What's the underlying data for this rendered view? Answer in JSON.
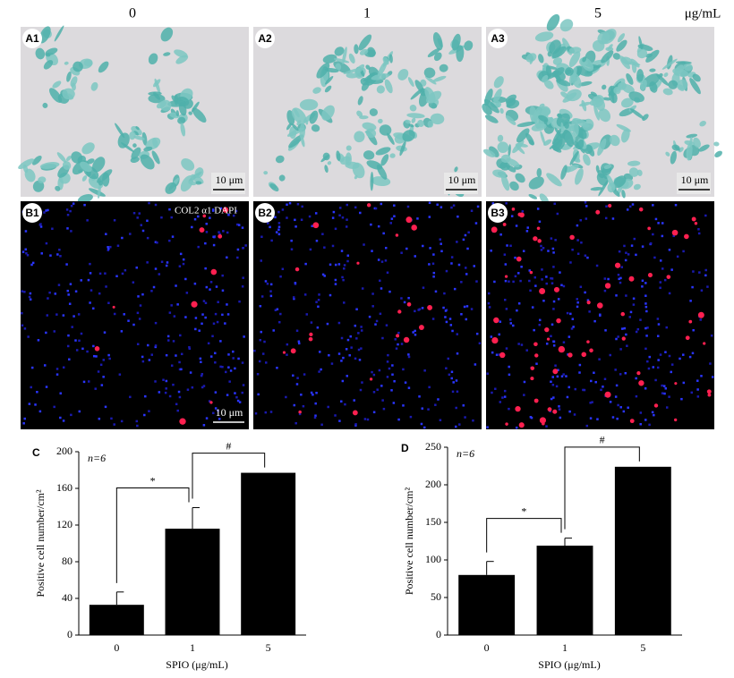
{
  "header": {
    "columns": [
      "0",
      "1",
      "5"
    ],
    "unit": "μg/mL"
  },
  "panels": {
    "row_a": [
      {
        "label": "A1",
        "scale": "10 μm"
      },
      {
        "label": "A2",
        "scale": "10 μm"
      },
      {
        "label": "A3",
        "scale": "10 μm"
      }
    ],
    "row_b": [
      {
        "label": "B1",
        "scale": "10 μm"
      },
      {
        "label": "B2"
      },
      {
        "label": "B3"
      }
    ],
    "stain_label": "COL2 α1 DAPI"
  },
  "chart_data": [
    {
      "type": "bar",
      "panel": "C",
      "annotation": "n=6",
      "categories": [
        "0",
        "1",
        "5"
      ],
      "values": [
        33,
        116,
        177
      ],
      "errors": [
        14,
        23,
        null
      ],
      "color": "#000000",
      "ylim": [
        0,
        200
      ],
      "yticks": [
        0,
        40,
        80,
        120,
        160,
        200
      ],
      "ylabel": "Positive cell number/cm²",
      "xlabel": "SPIO (μg/mL)",
      "significance_labels": [
        "*",
        "#"
      ]
    },
    {
      "type": "bar",
      "panel": "D",
      "annotation": "n=6",
      "categories": [
        "0",
        "1",
        "5"
      ],
      "values": [
        80,
        119,
        224
      ],
      "errors": [
        18,
        10,
        null
      ],
      "color": "#000000",
      "ylim": [
        0,
        250
      ],
      "yticks": [
        0,
        50,
        100,
        150,
        200,
        250
      ],
      "ylabel": "Positive cell number/cm²",
      "xlabel": "SPIO (μg/mL)",
      "significance_labels": [
        "*",
        "#"
      ]
    }
  ]
}
